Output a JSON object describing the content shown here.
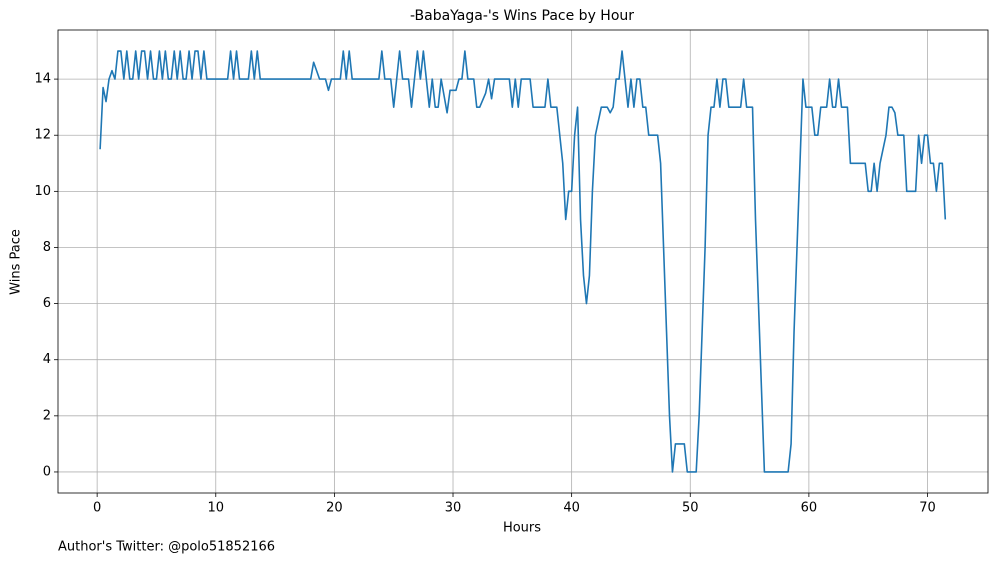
{
  "chart_data": {
    "type": "line",
    "title": "-BabaYaga-'s Wins Pace by Hour",
    "x_label": "Hours",
    "y_label": "Wins Pace",
    "footnote": "Author's Twitter: @polo51852166",
    "x": [
      0.25,
      0.5,
      0.75,
      1,
      1.25,
      1.5,
      1.75,
      2,
      2.25,
      2.5,
      2.75,
      3,
      3.25,
      3.5,
      3.75,
      4,
      4.25,
      4.5,
      4.75,
      5,
      5.25,
      5.5,
      5.75,
      6,
      6.25,
      6.5,
      6.75,
      7,
      7.25,
      7.5,
      7.75,
      8,
      8.25,
      8.5,
      8.75,
      9,
      9.25,
      11,
      11.25,
      11.5,
      11.75,
      12,
      12.75,
      13,
      13.25,
      13.5,
      13.75,
      18,
      18.25,
      18.75,
      19.25,
      19.5,
      19.75,
      20.5,
      20.75,
      21,
      21.25,
      21.5,
      23.75,
      24,
      24.25,
      24.75,
      25,
      25.5,
      25.75,
      26.25,
      26.5,
      27,
      27.25,
      27.5,
      27.75,
      28,
      28.25,
      28.5,
      28.75,
      29,
      29.5,
      29.75,
      30.25,
      30.5,
      30.75,
      31,
      31.25,
      31.75,
      32,
      32.25,
      32.75,
      33,
      33.25,
      33.5,
      34.75,
      35,
      35.25,
      35.5,
      35.75,
      36.5,
      36.75,
      37.75,
      38,
      38.25,
      38.75,
      39,
      39.25,
      39.5,
      39.75,
      40,
      40.25,
      40.5,
      40.75,
      41,
      41.25,
      41.5,
      41.75,
      42,
      42.5,
      43,
      43.25,
      43.5,
      43.75,
      44,
      44.25,
      44.5,
      44.75,
      45,
      45.25,
      45.5,
      45.75,
      46,
      46.25,
      46.5,
      47.25,
      47.5,
      47.75,
      48,
      48.25,
      48.5,
      48.75,
      49.5,
      49.75,
      50.5,
      50.75,
      51,
      51.25,
      51.5,
      51.75,
      52,
      52.25,
      52.5,
      52.75,
      53,
      53.25,
      54.25,
      54.5,
      54.75,
      55.25,
      55.5,
      55.75,
      56,
      56.25,
      58.25,
      58.5,
      58.75,
      59.25,
      59.5,
      59.75,
      60.25,
      60.5,
      60.75,
      61,
      61.5,
      61.75,
      62,
      62.25,
      62.5,
      62.75,
      63.25,
      63.5,
      64.75,
      65,
      65.25,
      65.5,
      65.75,
      66,
      66.5,
      66.75,
      67,
      67.25,
      67.5,
      68,
      68.25,
      68.75,
      69,
      69.25,
      69.5,
      69.75,
      70,
      70.25,
      70.5,
      70.75,
      71,
      71.25,
      71.5
    ],
    "series": [
      {
        "color": "#1f77b4",
        "values": [
          11.5,
          13.7,
          13.2,
          14,
          14.3,
          14,
          15,
          15,
          14,
          15,
          14,
          14,
          15,
          14,
          15,
          15,
          14,
          15,
          14,
          14,
          15,
          14,
          15,
          14,
          14,
          15,
          14,
          15,
          14,
          14,
          15,
          14,
          15,
          15,
          14,
          15,
          14,
          14,
          15,
          14,
          15,
          14,
          14,
          15,
          14,
          15,
          14,
          14,
          14.6,
          14,
          14,
          13.6,
          14,
          14,
          15,
          14,
          15,
          14,
          14,
          15,
          14,
          14,
          13,
          15,
          14,
          14,
          13,
          15,
          14,
          15,
          14,
          13,
          14,
          13,
          13,
          14,
          12.8,
          13.6,
          13.6,
          14,
          14,
          15,
          14,
          14,
          13,
          13,
          13.5,
          14,
          13.3,
          14,
          14,
          13,
          14,
          13,
          14,
          14,
          13,
          13,
          14,
          13,
          13,
          12,
          11,
          9,
          10,
          10,
          12,
          13,
          9,
          7,
          6,
          7,
          10,
          12,
          13,
          13,
          12.8,
          13,
          14,
          14,
          15,
          14,
          13,
          14,
          13,
          14,
          14,
          13,
          13,
          12,
          12,
          11,
          8,
          5,
          2,
          0,
          1,
          1,
          0,
          0,
          2,
          5,
          8,
          12,
          13,
          13,
          14,
          13,
          14,
          14,
          13,
          13,
          14,
          13,
          13,
          9,
          6,
          3,
          0,
          0,
          1,
          5,
          11,
          14,
          13,
          13,
          12,
          12,
          13,
          13,
          14,
          13,
          13,
          14,
          13,
          13,
          11,
          11,
          10,
          10,
          11,
          10,
          11,
          12,
          13,
          13,
          12.8,
          12,
          12,
          10,
          10,
          10,
          12,
          11,
          12,
          12,
          11,
          11,
          10,
          11,
          11,
          9
        ]
      }
    ],
    "xlim": [
      -3.3,
      75.1
    ],
    "ylim": [
      -0.75,
      15.75
    ],
    "xticks": [
      0,
      10,
      20,
      30,
      40,
      50,
      60,
      70
    ],
    "yticks": [
      0,
      2,
      4,
      6,
      8,
      10,
      12,
      14
    ],
    "grid": true
  }
}
